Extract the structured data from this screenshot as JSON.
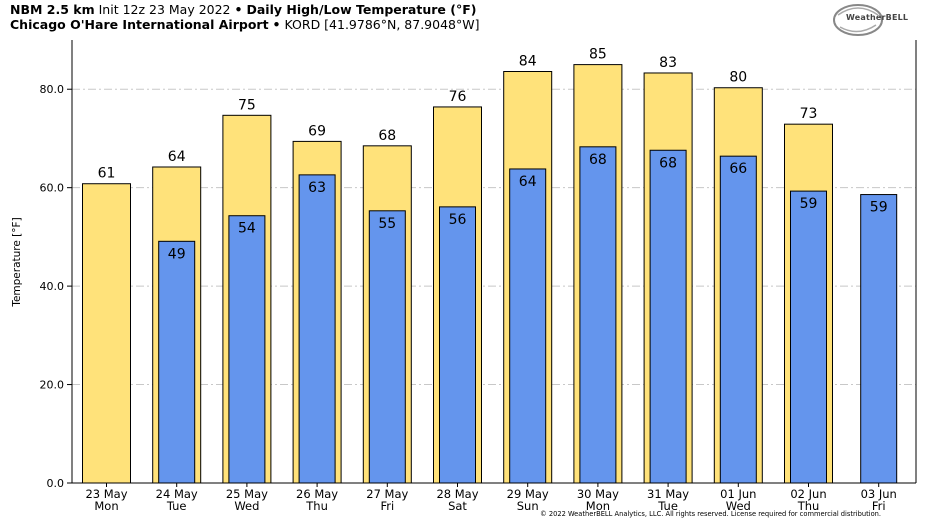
{
  "header": {
    "model": "NBM 2.5 km",
    "init": "Init 12z 23 May 2022",
    "separator": "•",
    "product": "Daily High/Low Temperature (°F)",
    "location": "Chicago O'Hare International Airport",
    "station": "KORD [41.9786°N, 87.9048°W]"
  },
  "brand": {
    "logo_text": "WeatherBELL"
  },
  "footer": {
    "copyright": "© 2022 WeatherBELL Analytics, LLC. All rights reserved. License required for commercial distribution."
  },
  "colors": {
    "high_fill": "#FFE27A",
    "low_fill": "#6495ED",
    "bar_stroke": "#000000",
    "grid": "#c8c8c8"
  },
  "chart_data": {
    "type": "bar",
    "ylabel": "Temperature [°F]",
    "ylim": [
      0,
      90
    ],
    "yticks": [
      "0.0",
      "20.0",
      "40.0",
      "60.0",
      "80.0"
    ],
    "ytick_values": [
      0,
      20,
      40,
      60,
      80
    ],
    "grid": true,
    "dates": [
      "23 May",
      "24 May",
      "25 May",
      "26 May",
      "27 May",
      "28 May",
      "29 May",
      "30 May",
      "31 May",
      "01 Jun",
      "02 Jun",
      "03 Jun"
    ],
    "weekdays": [
      "Mon",
      "Tue",
      "Wed",
      "Thu",
      "Fri",
      "Sat",
      "Sun",
      "Mon",
      "Tue",
      "Wed",
      "Thu",
      "Fri"
    ],
    "series": [
      {
        "name": "High",
        "values": [
          61,
          64,
          75,
          69,
          68,
          76,
          84,
          85,
          83,
          80,
          73,
          null
        ]
      },
      {
        "name": "Low",
        "values": [
          null,
          49,
          54,
          63,
          55,
          56,
          64,
          68,
          68,
          66,
          59,
          59
        ]
      }
    ],
    "high_values_plot": [
      60.8,
      64.2,
      74.7,
      69.4,
      68.5,
      76.4,
      83.6,
      85.0,
      83.3,
      80.3,
      72.9,
      null
    ],
    "low_values_plot": [
      null,
      49.1,
      54.3,
      62.6,
      55.3,
      56.1,
      63.8,
      68.3,
      67.6,
      66.4,
      59.3,
      58.6
    ]
  }
}
